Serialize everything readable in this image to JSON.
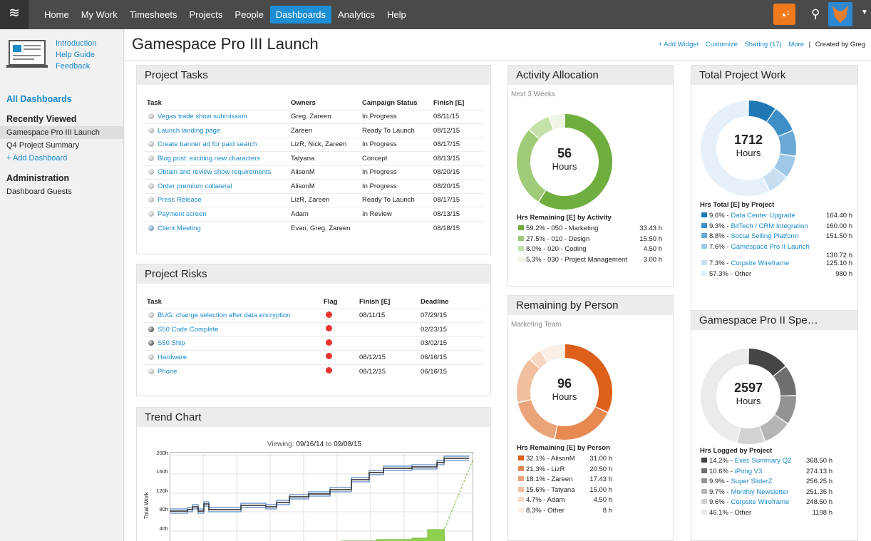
{
  "nav": {
    "items": [
      "Home",
      "My Work",
      "Timesheets",
      "Projects",
      "People",
      "Dashboards",
      "Analytics",
      "Help"
    ],
    "active": "Dashboards",
    "timer_badge": "1"
  },
  "sidebar": {
    "intro_links": [
      "Introduction",
      "Help Guide",
      "Feedback"
    ],
    "all_dashboards": "All Dashboards",
    "recent_title": "Recently Viewed",
    "recent": [
      "Gamespace Pro III Launch",
      "Q4 Project Summary"
    ],
    "add_dashboard": "+ Add Dashboard",
    "admin_title": "Administration",
    "admin": [
      "Dashboard Guests"
    ]
  },
  "page": {
    "title": "Gamespace Pro III Launch",
    "actions": {
      "add_widget": "+ Add Widget",
      "customize": "Customize",
      "sharing": "Sharing (17)",
      "more": "More",
      "created_by": "Created by Greg"
    }
  },
  "tasks": {
    "title": "Project Tasks",
    "headers": [
      "Task",
      "Owners",
      "Campaign Status",
      "Finish [E]"
    ],
    "rows": [
      {
        "task": "Vegas trade show submission",
        "owners": "Greg, Zareen",
        "status": "In Progress",
        "finish": "08/11/15",
        "icon": "task"
      },
      {
        "task": "Launch landing page",
        "owners": "Zareen",
        "status": "Ready To Launch",
        "finish": "08/12/15",
        "icon": "task"
      },
      {
        "task": "Create banner ad for paid search",
        "owners": "LizR, Nick, Zareen",
        "status": "In Progress",
        "finish": "08/17/15",
        "icon": "task"
      },
      {
        "task": "Blog post: exciting new characters",
        "owners": "Tatyana",
        "status": "Concept",
        "finish": "08/13/15",
        "icon": "task"
      },
      {
        "task": "Obtain and review show requirements",
        "owners": "AlisonM",
        "status": "In Progress",
        "finish": "08/20/15",
        "icon": "task"
      },
      {
        "task": "Order premium collateral",
        "owners": "AlisonM",
        "status": "In Progress",
        "finish": "08/20/15",
        "icon": "task"
      },
      {
        "task": "Press Release",
        "owners": "LizR, Zareen",
        "status": "Ready To Launch",
        "finish": "08/17/15",
        "icon": "task"
      },
      {
        "task": "Payment screen",
        "owners": "Adam",
        "status": "In Review",
        "finish": "08/13/15",
        "icon": "task"
      },
      {
        "task": "Client Meeting",
        "owners": "Evan, Greg, Zareen",
        "status": "",
        "finish": "08/18/15",
        "icon": "meeting"
      }
    ]
  },
  "risks": {
    "title": "Project Risks",
    "headers": [
      "Task",
      "Flag",
      "Finish [E]",
      "Deadline"
    ],
    "rows": [
      {
        "task": "BUG: change selection after data encryption",
        "finish": "08/11/15",
        "deadline": "07/29/15",
        "icon": "task"
      },
      {
        "task": "S50 Code Complete",
        "finish": "",
        "deadline": "02/23/15",
        "icon": "milestone"
      },
      {
        "task": "S50 Ship",
        "finish": "",
        "deadline": "03/02/15",
        "icon": "milestone"
      },
      {
        "task": "Hardware",
        "finish": "08/12/15",
        "deadline": "06/16/15",
        "icon": "task"
      },
      {
        "task": "Phone",
        "finish": "08/12/15",
        "deadline": "06/16/15",
        "icon": "task"
      }
    ]
  },
  "trend": {
    "title": "Trend Chart",
    "viewing_label": "Viewing:",
    "from": "09/16/14",
    "to_word": "to",
    "to": "09/08/15",
    "ylabel": "Total Work",
    "yticks": [
      "200h",
      "160h",
      "120h",
      "80h",
      "40h"
    ]
  },
  "activity": {
    "title": "Activity Allocation",
    "subtitle": "Next 3 Weeks",
    "total": "56",
    "unit": "Hours",
    "legend_title": "Hrs Remaining [E] by Activity",
    "items": [
      {
        "pct": 59.2,
        "label": "59.2% - 050 - Marketing",
        "value": "33.43 h",
        "color": "#6fad3f"
      },
      {
        "pct": 27.5,
        "label": "27.5% - 010 - Design",
        "value": "15.50 h",
        "color": "#9fcb78"
      },
      {
        "pct": 8.0,
        "label": "8.0% - 020 - Coding",
        "value": "4.50 h",
        "color": "#c6e0aa"
      },
      {
        "pct": 5.3,
        "label": "5.3% - 030 - Project Management",
        "value": "3.00 h",
        "color": "#eef5e4"
      }
    ]
  },
  "person": {
    "title": "Remaining by Person",
    "subtitle": "Marketing Team",
    "total": "96",
    "unit": "Hours",
    "legend_title": "Hrs Remaining [E] by Person",
    "items": [
      {
        "pct": 32.1,
        "label": "32.1% - AlisonM",
        "value": "31.00 h",
        "color": "#dc5f1a"
      },
      {
        "pct": 21.3,
        "label": "21.3% - LizR",
        "value": "20.50 h",
        "color": "#e78a51"
      },
      {
        "pct": 18.1,
        "label": "18.1% - Zareen",
        "value": "17.43 h",
        "color": "#eba479"
      },
      {
        "pct": 15.6,
        "label": "15.6% - Tatyana",
        "value": "15.00 h",
        "color": "#f1bf9d"
      },
      {
        "pct": 4.7,
        "label": "4.7% - Adam",
        "value": "4.50 h",
        "color": "#f6d8c3"
      },
      {
        "pct": 8.3,
        "label": "8.3% - Other",
        "value": "8 h",
        "color": "#faeee5"
      }
    ]
  },
  "total_work": {
    "title": "Total Project Work",
    "total": "1712",
    "unit": "Hours",
    "legend_title": "Hrs Total [E] by Project",
    "items": [
      {
        "pct": 9.6,
        "prefix": "9.6% -",
        "name": "Data Center Upgrade",
        "value": "164.40 h",
        "color": "#1f77b4"
      },
      {
        "pct": 9.3,
        "prefix": "9.3% -",
        "name": "BitTech / CRM Integration",
        "value": "160.00 h",
        "color": "#3d8fc6"
      },
      {
        "pct": 8.8,
        "prefix": "8.8% -",
        "name": "Social Selling Platform",
        "value": "151.50 h",
        "color": "#6aa9d6"
      },
      {
        "pct": 7.6,
        "prefix": "7.6% -",
        "name": "Gamespace Pro II Launch",
        "value": "130.72 h",
        "color": "#9ec8e6"
      },
      {
        "pct": 7.3,
        "prefix": "7.3% -",
        "name": "Corpsite Wireframe",
        "value": "125.10 h",
        "color": "#c7dff0"
      },
      {
        "pct": 57.3,
        "prefix": "57.3% - Other",
        "name": "",
        "value": "980 h",
        "color": "#e6f0f8"
      }
    ]
  },
  "gamespace": {
    "title": "Gamespace Pro II Spe…",
    "total": "2597",
    "unit": "Hours",
    "legend_title": "Hrs Logged by Project",
    "items": [
      {
        "pct": 14.2,
        "prefix": "14.2% -",
        "name": "Exec Summary Q2",
        "value": "368.50 h",
        "color": "#454545"
      },
      {
        "pct": 10.6,
        "prefix": "10.6% -",
        "name": "iPong V3",
        "value": "274.13 h",
        "color": "#6f6f6f"
      },
      {
        "pct": 9.9,
        "prefix": "9.9% -",
        "name": "Super SliderZ",
        "value": "256.25 h",
        "color": "#939393"
      },
      {
        "pct": 9.7,
        "prefix": "9.7% -",
        "name": "Monthly Newsletter",
        "value": "251.35 h",
        "color": "#b5b5b5"
      },
      {
        "pct": 9.6,
        "prefix": "9.6% -",
        "name": "Corpsite Wireframe",
        "value": "248.50 h",
        "color": "#d2d2d2"
      },
      {
        "pct": 46.1,
        "prefix": "46.1% - Other",
        "name": "",
        "value": "1198 h",
        "color": "#ebebeb"
      }
    ]
  }
}
